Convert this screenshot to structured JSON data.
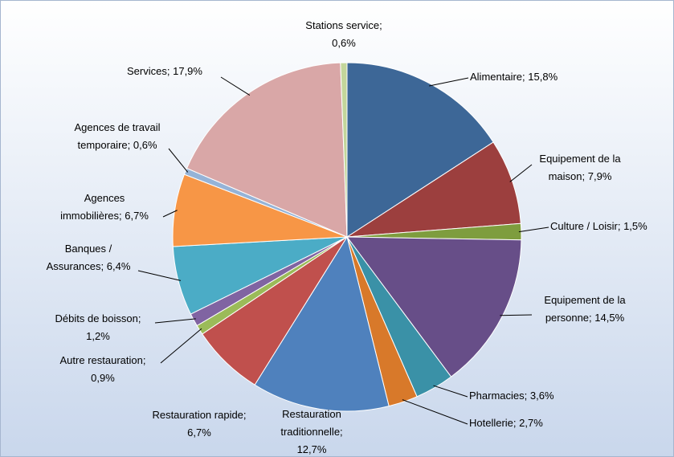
{
  "chart_data": {
    "type": "pie",
    "categories": [
      "Alimentaire",
      "Equipement de la maison",
      "Culture / Loisir",
      "Equipement de la personne",
      "Pharmacies",
      "Hotellerie",
      "Restauration traditionnelle",
      "Restauration rapide",
      "Autre restauration",
      "Débits de boisson",
      "Banques / Assurances",
      "Agences immobilières",
      "Agences de travail temporaire",
      "Services",
      "Stations service"
    ],
    "values": [
      15.8,
      7.9,
      1.5,
      14.5,
      3.6,
      2.7,
      12.7,
      6.7,
      0.9,
      1.2,
      6.4,
      6.7,
      0.6,
      17.9,
      0.6
    ],
    "value_labels": [
      "15,8%",
      "7,9%",
      "1,5%",
      "14,5%",
      "3,6%",
      "2,7%",
      "12,7%",
      "6,7%",
      "0,9%",
      "1,2%",
      "6,4%",
      "6,7%",
      "0,6%",
      "17,9%",
      "0,6%"
    ],
    "label_separator": ";",
    "colors": [
      "#3d6797",
      "#9c3f3e",
      "#7e9d3e",
      "#674e88",
      "#3a91a7",
      "#d8792a",
      "#4f81bd",
      "#c0504d",
      "#9bbb59",
      "#8064a2",
      "#4bacc6",
      "#f79646",
      "#95b3d7",
      "#d9a7a7",
      "#c3d69b"
    ]
  }
}
